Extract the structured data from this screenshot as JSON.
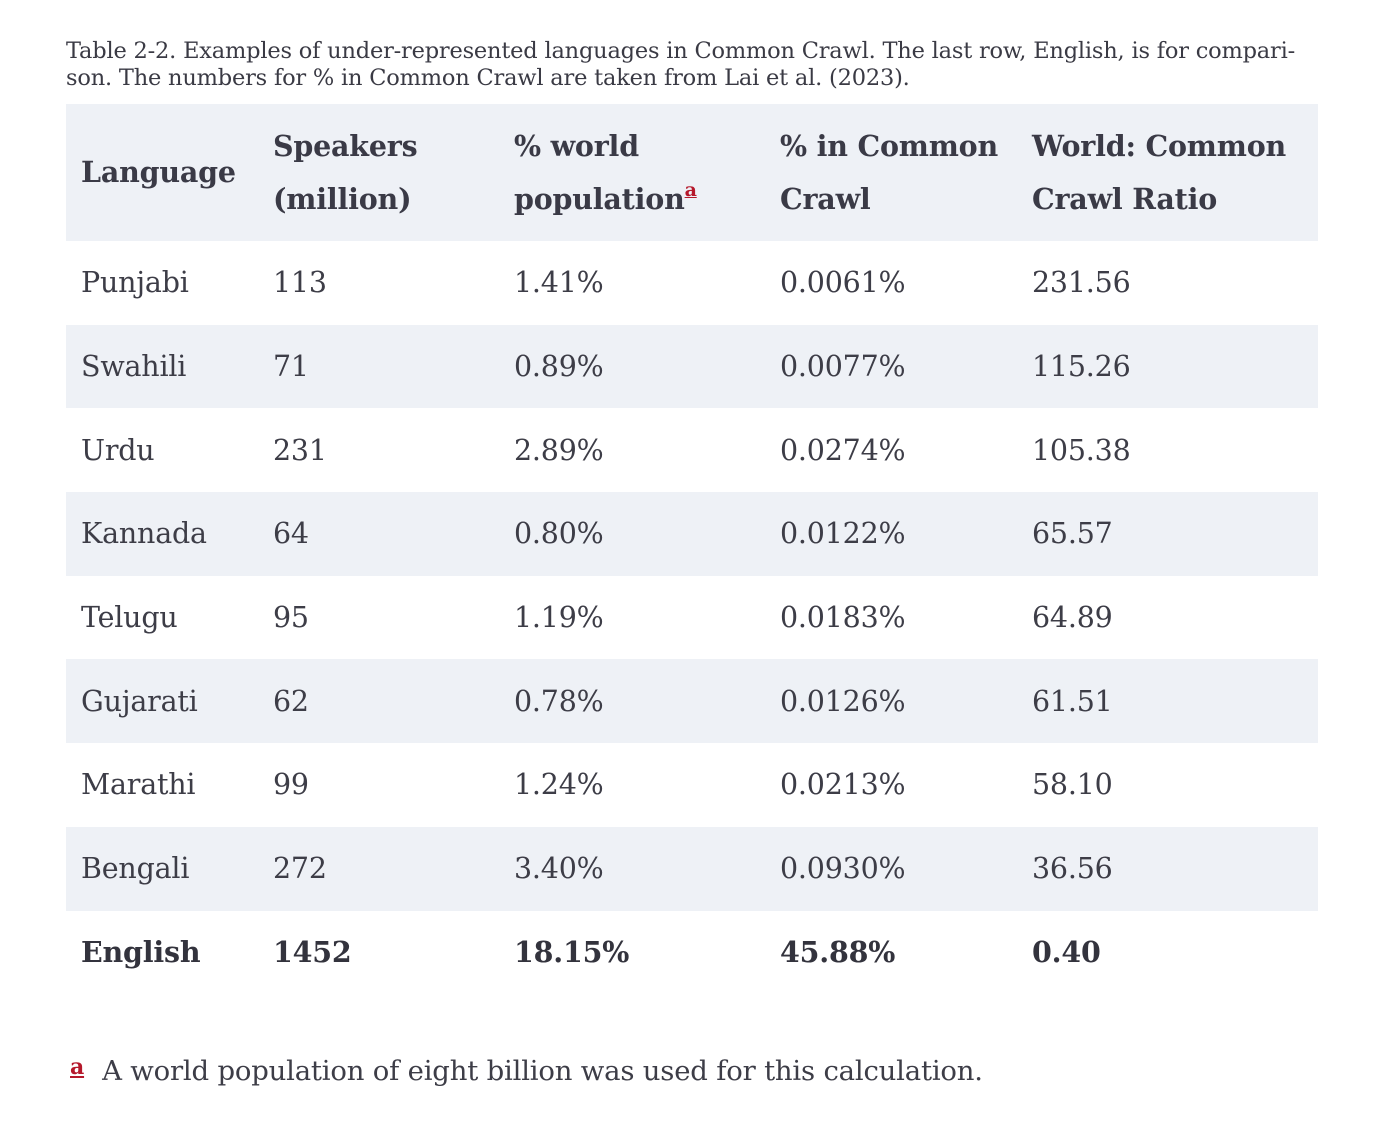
{
  "caption": "Table 2-2. Examples of under-represented languages in Common Crawl. The last row, English, is for comparison. The numbers for % in Common Crawl are taken from Lai et al. (2023).",
  "caption_line1": "Table 2-2. Examples of under-represented languages in Common Crawl. The last row, English, is for compari-",
  "caption_line2": "son. The numbers for % in Common Crawl are taken from Lai et al. (2023).",
  "table": {
    "headers": {
      "language": "Language",
      "speakers_l1": "Speakers",
      "speakers_l2": "(million)",
      "world_l1": "% world",
      "world_l2": "population",
      "world_ref": "a",
      "cc_l1": "% in Common",
      "cc_l2": "Crawl",
      "ratio_l1": "World: Common",
      "ratio_l2": "Crawl Ratio"
    },
    "rows": [
      [
        "Punjabi",
        "113",
        "1.41%",
        "0.0061%",
        "231.56"
      ],
      [
        "Swahili",
        "71",
        "0.89%",
        "0.0077%",
        "115.26"
      ],
      [
        "Urdu",
        "231",
        "2.89%",
        "0.0274%",
        "105.38"
      ],
      [
        "Kannada",
        "64",
        "0.80%",
        "0.0122%",
        "65.57"
      ],
      [
        "Telugu",
        "95",
        "1.19%",
        "0.0183%",
        "64.89"
      ],
      [
        "Gujarati",
        "62",
        "0.78%",
        "0.0126%",
        "61.51"
      ],
      [
        "Marathi",
        "99",
        "1.24%",
        "0.0213%",
        "58.10"
      ],
      [
        "Bengali",
        "272",
        "3.40%",
        "0.0930%",
        "36.56"
      ],
      [
        "English",
        "1452",
        "18.15%",
        "45.88%",
        "0.40"
      ]
    ]
  },
  "footnote": {
    "mark": "a",
    "text": "A world population of eight billion was used for this calculation."
  }
}
